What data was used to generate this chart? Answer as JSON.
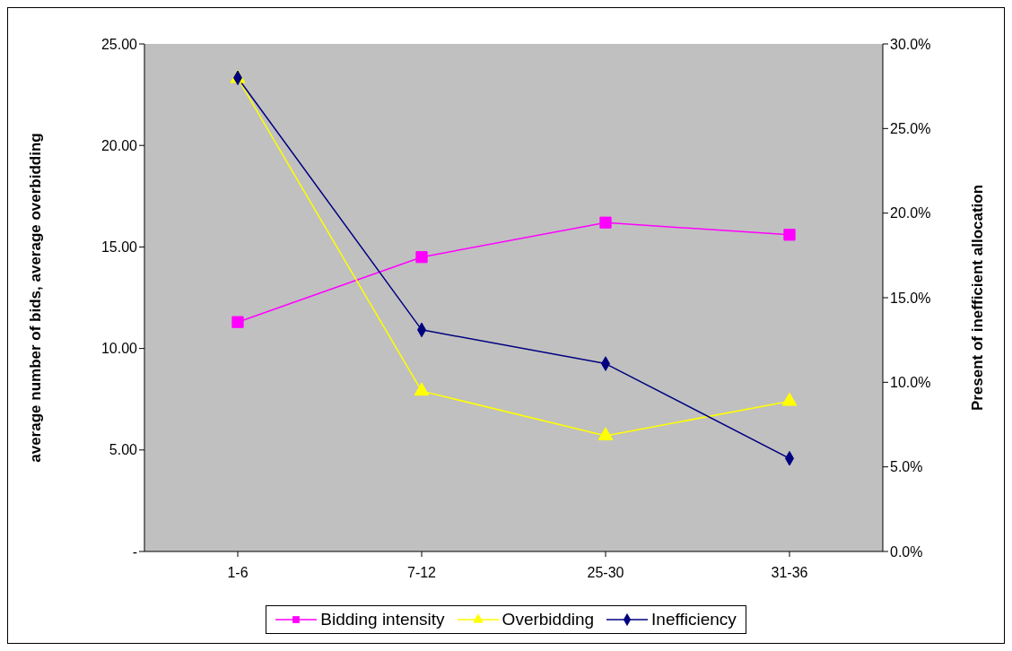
{
  "chart_data": {
    "type": "line",
    "categories": [
      "1-6",
      "7-12",
      "25-30",
      "31-36"
    ],
    "ylabel": "average number of bids, average overbidding",
    "y2label": "Present of inefficient allocation",
    "series": [
      {
        "name": "Bidding intensity",
        "color": "#ff00ff",
        "marker": "square",
        "values": [
          11.3,
          14.5,
          16.2,
          15.6
        ]
      },
      {
        "name": "Overbidding",
        "color": "#ffff00",
        "marker": "triangle",
        "values": [
          23.3,
          7.9,
          5.7,
          7.4
        ]
      },
      {
        "name": "Inefficiency",
        "color": "#000080",
        "marker": "diamond",
        "axis": "y2",
        "values": [
          28.0,
          13.1,
          11.1,
          5.5
        ]
      }
    ],
    "ylim": [
      0,
      25
    ],
    "yticks": [
      {
        "value": 0,
        "label": "-"
      },
      {
        "value": 5,
        "label": "5.00"
      },
      {
        "value": 10,
        "label": "10.00"
      },
      {
        "value": 15,
        "label": "15.00"
      },
      {
        "value": 20,
        "label": "20.00"
      },
      {
        "value": 25,
        "label": "25.00"
      }
    ],
    "y2lim": [
      0,
      30
    ],
    "y2ticks": [
      {
        "value": 0,
        "label": "0.0%"
      },
      {
        "value": 5,
        "label": "5.0%"
      },
      {
        "value": 10,
        "label": "10.0%"
      },
      {
        "value": 15,
        "label": "15.0%"
      },
      {
        "value": 20,
        "label": "20.0%"
      },
      {
        "value": 25,
        "label": "25.0%"
      },
      {
        "value": 30,
        "label": "30.0%"
      }
    ],
    "grid": false,
    "legend": "bottom",
    "line_style": "solid"
  }
}
